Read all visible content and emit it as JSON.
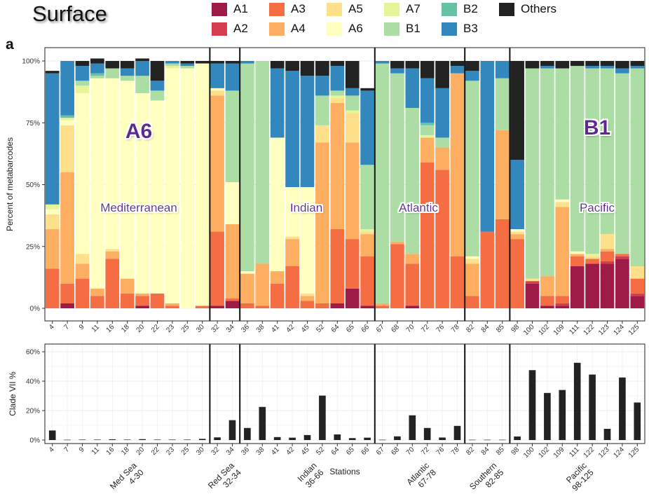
{
  "title": "Surface",
  "panel_label": "a",
  "legend": [
    {
      "key": "A1",
      "label": "A1",
      "color": "#9E1A47"
    },
    {
      "key": "A2",
      "label": "A2",
      "color": "#D53E4F"
    },
    {
      "key": "A3",
      "label": "A3",
      "color": "#F46D43"
    },
    {
      "key": "A4",
      "label": "A4",
      "color": "#FDAE61"
    },
    {
      "key": "A5",
      "label": "A5",
      "color": "#FEE08B"
    },
    {
      "key": "A6",
      "label": "A6",
      "color": "#FFFFBF"
    },
    {
      "key": "A7",
      "label": "A7",
      "color": "#E6F598"
    },
    {
      "key": "B1",
      "label": "B1",
      "color": "#ABDDA4"
    },
    {
      "key": "B2",
      "label": "B2",
      "color": "#66C2A5"
    },
    {
      "key": "B3",
      "label": "B3",
      "color": "#3288BD"
    },
    {
      "key": "Others",
      "label": "Others",
      "color": "#222222"
    }
  ],
  "annotations": {
    "A6": "A6",
    "B1": "B1",
    "med": "Mediterranean",
    "indian": "Indian",
    "atlantic": "Atlantic",
    "pacific": "Pacific"
  },
  "region_labels": [
    {
      "line1": "Med Sea",
      "line2": "4-30"
    },
    {
      "line1": "Red Sea",
      "line2": "32-34"
    },
    {
      "line1": "Indian",
      "line2": "36-66"
    },
    {
      "line1": "Atlantic",
      "line2": "67-78"
    },
    {
      "line1": "Southern",
      "line2": "82-85"
    },
    {
      "line1": "Pacific",
      "line2": "98-125"
    }
  ],
  "chart_data": [
    {
      "type": "bar",
      "stacked": true,
      "ylabel": "Percent of metabarcodes",
      "yticks": [
        "0%",
        "25%",
        "50%",
        "75%",
        "100%"
      ],
      "ylim": [
        0,
        100
      ],
      "categories": [
        "4",
        "7",
        "9",
        "11",
        "16",
        "18",
        "20",
        "22",
        "23",
        "25",
        "30",
        "32",
        "34",
        "36",
        "38",
        "41",
        "42",
        "45",
        "52",
        "64",
        "65",
        "66",
        "67",
        "68",
        "70",
        "72",
        "76",
        "78",
        "82",
        "84",
        "85",
        "98",
        "100",
        "102",
        "109",
        "111",
        "122",
        "123",
        "124",
        "125"
      ],
      "region_breaks_after": [
        "30",
        "34",
        "66",
        "78",
        "85"
      ],
      "series": [
        {
          "name": "A1",
          "values": [
            0,
            2,
            0,
            0,
            0,
            0,
            1,
            0,
            0,
            0,
            0,
            1,
            3,
            0,
            0,
            0,
            0,
            0,
            0,
            2,
            8,
            1,
            0,
            0,
            1,
            0,
            0,
            0,
            0,
            0,
            0,
            0,
            10,
            1,
            1,
            17,
            18,
            18,
            20,
            5
          ]
        },
        {
          "name": "A2",
          "values": [
            0,
            0,
            0,
            0,
            0,
            0,
            0,
            0,
            0,
            0,
            0,
            0,
            0,
            0,
            0,
            0,
            0,
            0,
            0,
            0,
            0,
            0,
            0,
            0,
            0,
            0,
            0,
            0,
            0,
            0,
            0,
            0,
            1,
            0,
            1,
            0,
            0,
            1,
            1,
            1
          ]
        },
        {
          "name": "A3",
          "values": [
            16,
            8,
            12,
            5,
            20,
            6,
            4,
            6,
            1,
            0,
            1,
            30,
            1,
            2,
            1,
            10,
            17,
            3,
            2,
            30,
            20,
            20,
            1,
            26,
            17,
            59,
            56,
            21,
            5,
            31,
            36,
            28,
            0,
            4,
            3,
            4,
            2,
            4,
            1,
            6
          ]
        },
        {
          "name": "A4",
          "values": [
            16,
            45,
            6,
            3,
            3,
            6,
            1,
            0,
            1,
            0,
            0,
            55,
            30,
            12,
            17,
            5,
            11,
            2,
            65,
            51,
            39,
            9,
            1,
            1,
            4,
            10,
            9,
            74,
            13,
            0,
            36,
            2,
            0,
            8,
            36,
            1,
            0,
            1,
            0,
            0
          ]
        },
        {
          "name": "A5",
          "values": [
            6,
            19,
            4,
            0,
            1,
            0,
            0,
            0,
            0,
            0,
            0,
            2,
            0,
            0,
            0,
            0,
            1,
            1,
            7,
            2,
            12,
            1,
            0,
            0,
            0,
            0,
            0,
            0,
            2,
            0,
            0,
            1,
            1,
            0,
            2,
            0,
            1,
            6,
            0,
            5
          ]
        },
        {
          "name": "A6",
          "values": [
            2,
            2,
            65,
            85,
            69,
            80,
            81,
            78,
            95,
            97,
            98,
            1,
            17,
            1,
            0,
            54,
            20,
            43,
            0,
            0,
            0,
            0,
            0,
            0,
            0,
            0,
            0,
            0,
            1,
            0,
            0,
            1,
            0,
            0,
            1,
            1,
            0,
            0,
            0,
            0
          ]
        },
        {
          "name": "A7",
          "values": [
            2,
            1,
            3,
            0,
            0,
            0,
            0,
            0,
            1,
            0,
            0,
            0,
            0,
            0,
            0,
            0,
            0,
            0,
            0,
            1,
            1,
            1,
            0,
            0,
            0,
            1,
            0,
            0,
            0,
            0,
            0,
            0,
            0,
            0,
            0,
            0,
            1,
            0,
            0,
            0
          ]
        },
        {
          "name": "B1",
          "values": [
            0,
            0,
            2,
            1,
            4,
            2,
            7,
            4,
            1,
            1,
            0,
            0,
            37,
            84,
            82,
            0,
            0,
            0,
            12,
            2,
            6,
            26,
            97,
            68,
            59,
            4,
            4,
            0,
            71,
            0,
            21,
            0,
            85,
            84,
            53,
            75,
            75,
            67,
            73,
            80
          ]
        },
        {
          "name": "B2",
          "values": [
            0,
            1,
            0,
            1,
            0,
            0,
            0,
            0,
            0,
            0,
            0,
            0,
            0,
            0,
            0,
            0,
            0,
            0,
            0,
            0,
            0,
            0,
            0,
            0,
            0,
            1,
            0,
            0,
            0,
            0,
            0,
            0,
            0,
            0,
            0,
            0,
            0,
            0,
            0,
            0
          ]
        },
        {
          "name": "B3",
          "values": [
            53,
            22,
            6,
            4,
            0,
            3,
            6,
            4,
            1,
            1,
            0,
            10,
            11,
            1,
            0,
            28,
            47,
            45,
            8,
            10,
            3,
            30,
            1,
            2,
            16,
            18,
            20,
            3,
            4,
            69,
            7,
            28,
            0,
            1,
            0,
            0,
            1,
            1,
            2,
            1
          ]
        },
        {
          "name": "Others",
          "values": [
            1,
            0,
            2,
            2,
            3,
            3,
            1,
            8,
            0,
            1,
            1,
            1,
            1,
            0,
            0,
            3,
            4,
            6,
            6,
            2,
            11,
            1,
            0,
            3,
            3,
            7,
            11,
            2,
            4,
            0,
            0,
            40,
            3,
            2,
            3,
            2,
            2,
            2,
            3,
            2
          ]
        }
      ]
    },
    {
      "type": "bar",
      "xlabel": "Stations",
      "ylabel": "Clade VII %",
      "yticks": [
        "0%",
        "20%",
        "40%",
        "60%"
      ],
      "ylim": [
        0,
        60
      ],
      "categories": [
        "4",
        "7",
        "9",
        "11",
        "16",
        "18",
        "20",
        "22",
        "23",
        "25",
        "30",
        "32",
        "34",
        "36",
        "38",
        "41",
        "42",
        "45",
        "52",
        "64",
        "65",
        "66",
        "67",
        "68",
        "70",
        "72",
        "76",
        "78",
        "82",
        "84",
        "85",
        "98",
        "100",
        "102",
        "109",
        "111",
        "122",
        "123",
        "124",
        "125"
      ],
      "values": [
        6.5,
        0.2,
        0.3,
        0.3,
        0.5,
        0.3,
        0.6,
        0.3,
        0.3,
        0.3,
        0.8,
        1.8,
        13.5,
        8.2,
        22.5,
        2,
        1.6,
        3.4,
        30.2,
        3.8,
        1.3,
        1.6,
        0.2,
        2.5,
        16.8,
        8.2,
        1.7,
        9.6,
        0.2,
        0.2,
        0.2,
        2.4,
        47.5,
        32,
        34,
        52.5,
        44.5,
        7.6,
        42.5,
        25.5
      ]
    }
  ]
}
